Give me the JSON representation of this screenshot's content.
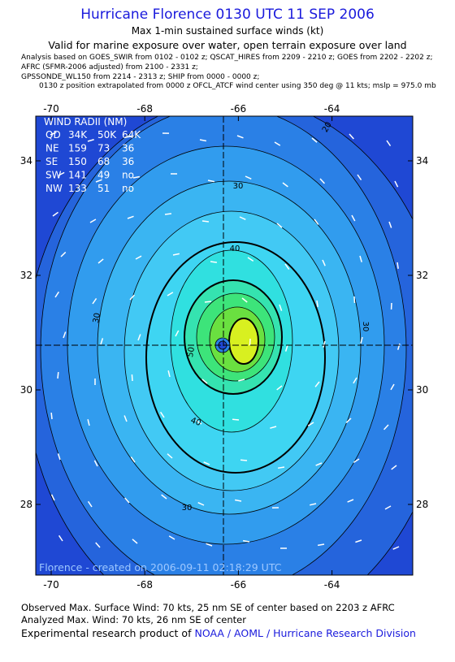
{
  "header": {
    "title": "Hurricane Florence 0130 UTC 11 SEP 2006",
    "subtitle": "Max 1-min sustained surface winds (kt)",
    "validity": "Valid for marine exposure over water, open terrain exposure over land",
    "sources": [
      "Analysis based on  GOES_SWIR from 0102 - 0102 z;  QSCAT_HIRES from 2209 - 2210 z;  GOES from 2202 - 2202 z;",
      "AFRC (SFMR-2006 adjusted) from 2100 - 2331 z;",
      "GPSSONDE_WL150 from 2214 - 2313 z;  SHIP from 0000 - 0000 z;",
      "0130 z position extrapolated from 0000 z OFCL_ATCF wind center using 350 deg @ 11 kts; mslp = 975.0 mb"
    ]
  },
  "map": {
    "xticks": [
      -70,
      -68,
      -66,
      -64
    ],
    "yticks": [
      28,
      30,
      32,
      34
    ],
    "wind_radii": {
      "title": "WIND RADII (NM)",
      "rows": [
        [
          "QD",
          "34K",
          "50K",
          "64K"
        ],
        [
          "NE",
          "159",
          "73",
          "36"
        ],
        [
          "SE",
          "150",
          "68",
          "36"
        ],
        [
          "SW",
          "141",
          "49",
          "no"
        ],
        [
          "NW",
          "133",
          "51",
          "no"
        ]
      ]
    },
    "contour_labels": [
      "20",
      "30",
      "40",
      "30",
      "30",
      "50",
      "40",
      "30"
    ],
    "credit": "Florence - created on 2006-09-11 02:18:29 UTC"
  },
  "footer": {
    "observed": "Observed Max. Surface Wind: 70 kts, 25 nm SE of center based on 2203 z AFRC",
    "analyzed": "Analyzed Max. Wind: 70 kts, 26 nm SE of center",
    "product": "Experimental research product of",
    "link": "NOAA / AOML / Hurricane Research Division"
  }
}
